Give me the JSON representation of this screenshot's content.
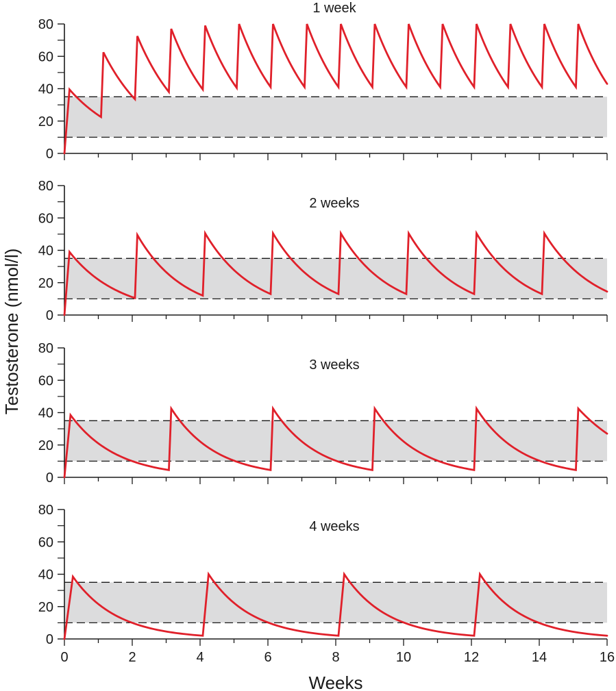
{
  "colors": {
    "curve": "#e0202a",
    "band_fill": "#dcdcdd",
    "axis": "#1a1a1a",
    "band_line": "#1a1a1a",
    "background": "#ffffff"
  },
  "chart_data": {
    "type": "line",
    "ylabel": "Testosterone (nmol/l)",
    "xlabel": "Weeks",
    "xlim": [
      0,
      16
    ],
    "ylim": [
      0,
      80
    ],
    "x_ticks": [
      0,
      2,
      4,
      6,
      8,
      10,
      12,
      14,
      16
    ],
    "x_tick_labels": [
      "0",
      "2",
      "4",
      "6",
      "8",
      "10",
      "12",
      "14",
      "16"
    ],
    "y_ticks": [
      0,
      20,
      40,
      60,
      80
    ],
    "y_tick_labels": [
      "0",
      "20",
      "40",
      "60",
      "80"
    ],
    "reference_band": [
      10,
      35
    ],
    "grid": false,
    "legend": "none",
    "panels": [
      {
        "title": "1 week",
        "x": [
          0,
          0.15,
          1.08,
          1.15,
          2.08,
          2.15,
          3.08,
          3.15,
          4.08,
          4.15,
          5.08,
          5.15,
          6.08,
          6.15,
          7.08,
          7.15,
          8.08,
          8.15,
          9.08,
          9.15,
          10.08,
          10.15,
          11.08,
          11.15,
          12.08,
          12.15,
          13.08,
          13.15,
          14.08,
          14.15,
          15.08,
          15.15,
          16.0
        ],
        "y": [
          0,
          39.5,
          22.5,
          62.5,
          33.5,
          72.5,
          38.0,
          77.0,
          39.5,
          79.0,
          40.5,
          80.0,
          41.0,
          80.0,
          41.0,
          80.0,
          41.0,
          80.0,
          41.0,
          80.0,
          41.0,
          80.0,
          41.0,
          80.0,
          41.0,
          80.0,
          41.0,
          80.0,
          41.0,
          80.0,
          41.0,
          80.0,
          43.0
        ],
        "decay_shape": "exponential"
      },
      {
        "title": "2 weeks",
        "x": [
          0,
          0.15,
          2.08,
          2.15,
          4.08,
          4.15,
          6.08,
          6.15,
          8.08,
          8.15,
          10.08,
          10.15,
          12.08,
          12.15,
          14.08,
          14.15,
          16.0
        ],
        "y": [
          0,
          39.0,
          10.5,
          49.5,
          12.0,
          50.5,
          13.0,
          50.5,
          13.0,
          50.5,
          13.0,
          50.5,
          13.0,
          50.5,
          13.0,
          50.5,
          14.5
        ],
        "decay_shape": "exponential"
      },
      {
        "title": "3 weeks",
        "x": [
          0,
          0.18,
          3.08,
          3.15,
          6.08,
          6.15,
          9.08,
          9.15,
          12.08,
          12.15,
          15.08,
          15.15,
          16.0
        ],
        "y": [
          0,
          38.5,
          4.5,
          42.5,
          4.5,
          42.5,
          4.5,
          42.5,
          4.5,
          42.5,
          4.5,
          42.5,
          27.0
        ],
        "decay_shape": "exponential"
      },
      {
        "title": "4 weeks",
        "x": [
          0,
          0.25,
          4.08,
          4.25,
          8.08,
          8.25,
          12.08,
          12.25,
          16.0
        ],
        "y": [
          0,
          38.5,
          2.0,
          40.0,
          2.0,
          40.0,
          2.0,
          40.0,
          2.0
        ],
        "decay_shape": "exponential"
      }
    ]
  }
}
